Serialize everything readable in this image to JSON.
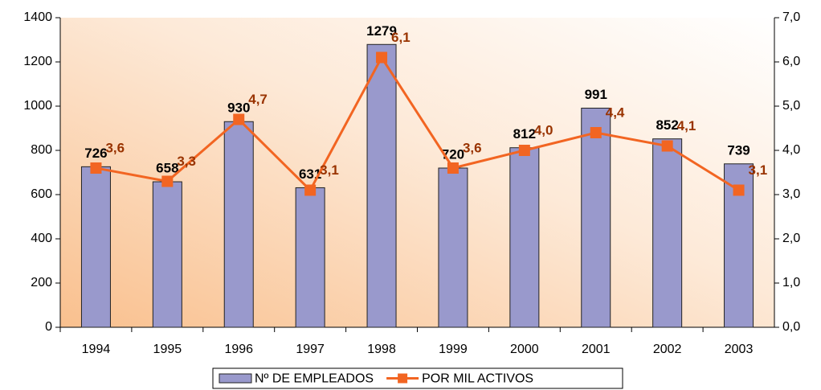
{
  "chart_data": {
    "type": "bar",
    "categories": [
      "1994",
      "1995",
      "1996",
      "1997",
      "1998",
      "1999",
      "2000",
      "2001",
      "2002",
      "2003"
    ],
    "series": [
      {
        "name": "Nº DE EMPLEADOS",
        "type": "bar",
        "color": "#9999cc",
        "values": [
          726,
          658,
          930,
          631,
          1279,
          720,
          812,
          991,
          852,
          739
        ]
      },
      {
        "name": "POR MIL ACTIVOS",
        "type": "line",
        "color": "#f26522",
        "axis": "y2",
        "values": [
          3.6,
          3.3,
          4.7,
          3.1,
          6.1,
          3.6,
          4.0,
          4.4,
          4.1,
          3.1
        ],
        "value_labels": [
          "3,6",
          "3,3",
          "4,7",
          "3,1",
          "6,1",
          "3,6",
          "4,0",
          "4,4",
          "4,1",
          "3,1"
        ]
      }
    ],
    "ylim": [
      0,
      1400
    ],
    "yticks": [
      0,
      200,
      400,
      600,
      800,
      1000,
      1200,
      1400
    ],
    "y2lim": [
      0,
      7
    ],
    "y2ticks": [
      {
        "value": 0,
        "label": "0,0"
      },
      {
        "value": 1,
        "label": "1,0"
      },
      {
        "value": 2,
        "label": "2,0"
      },
      {
        "value": 3,
        "label": "3,0"
      },
      {
        "value": 4,
        "label": "4,0"
      },
      {
        "value": 5,
        "label": "5,0"
      },
      {
        "value": 6,
        "label": "6,0"
      },
      {
        "value": 7,
        "label": "7,0"
      }
    ],
    "legend": "bottom"
  }
}
